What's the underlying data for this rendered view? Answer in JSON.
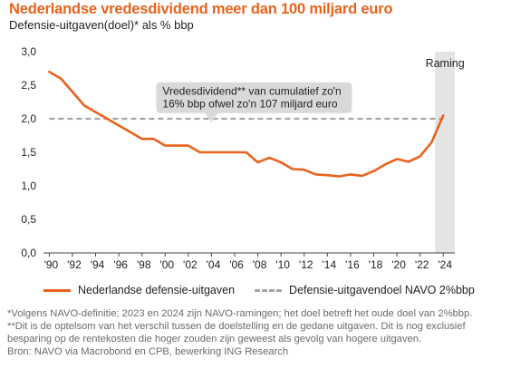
{
  "title": "Nederlandse vredesdividend meer dan 100 miljard euro",
  "subtitle": "Defensie-uitgaven(doel)* als % bbp",
  "chart_data": {
    "type": "line",
    "x_ticks": [
      "'90",
      "'92",
      "'94",
      "'96",
      "'98",
      "'00",
      "'02",
      "'04",
      "'06",
      "'08",
      "'10",
      "'12",
      "'14",
      "'16",
      "'18",
      "'20",
      "'22",
      "'24"
    ],
    "y_ticks": [
      "0,0",
      "0,5",
      "1,0",
      "1,5",
      "2,0",
      "2,5",
      "3,0"
    ],
    "xlim": [
      1989.5,
      2025
    ],
    "ylim": [
      0,
      3.0
    ],
    "series": [
      {
        "name": "Nederlandse defensie-uitgaven",
        "color": "#e8631c",
        "x": [
          1990,
          1991,
          1992,
          1993,
          1994,
          1995,
          1996,
          1997,
          1998,
          1999,
          2000,
          2001,
          2002,
          2003,
          2004,
          2005,
          2006,
          2007,
          2008,
          2009,
          2010,
          2011,
          2012,
          2013,
          2014,
          2015,
          2016,
          2017,
          2018,
          2019,
          2020,
          2021,
          2022,
          2023,
          2024
        ],
        "values": [
          2.7,
          2.6,
          2.4,
          2.2,
          2.1,
          2.0,
          1.9,
          1.8,
          1.7,
          1.7,
          1.6,
          1.6,
          1.6,
          1.5,
          1.5,
          1.5,
          1.5,
          1.5,
          1.35,
          1.42,
          1.35,
          1.25,
          1.24,
          1.17,
          1.16,
          1.14,
          1.17,
          1.15,
          1.22,
          1.32,
          1.4,
          1.36,
          1.44,
          1.65,
          2.05
        ]
      },
      {
        "name": "Defensie-uitgavendoel NAVO 2%bbp",
        "color": "#a6a6a6",
        "x": [
          1990,
          2024
        ],
        "values": [
          2.0,
          2.0
        ]
      }
    ],
    "shaded_region": {
      "label": "Raming",
      "x_start": 2023
    },
    "annotation": {
      "lines": [
        "Vredesdividend** van cumulatief zo'n",
        "16% bbp ofwel zo'n 107 miljard euro"
      ],
      "x": 2004,
      "y": 1.95
    },
    "grid": false,
    "legend": "bottom"
  },
  "legend": {
    "items": [
      "Nederlandse defensie-uitgaven",
      "Defensie-uitgavendoel NAVO 2%bbp"
    ]
  },
  "footnotes": [
    "*Volgens NAVO-definitie; 2023 en 2024 zijn NAVO-ramingen; het doel betreft het oude doel van 2%bbp.",
    "**Dit is de optelsom van het verschil tussen de doelstelling en de gedane uitgaven. Dit is nog exclusief",
    "besparing op de rentekosten die hoger zouden zijn geweest als gevolg van hogere uitgaven.",
    "Bron: NAVO via Macrobond en CPB, bewerking ING Research"
  ]
}
